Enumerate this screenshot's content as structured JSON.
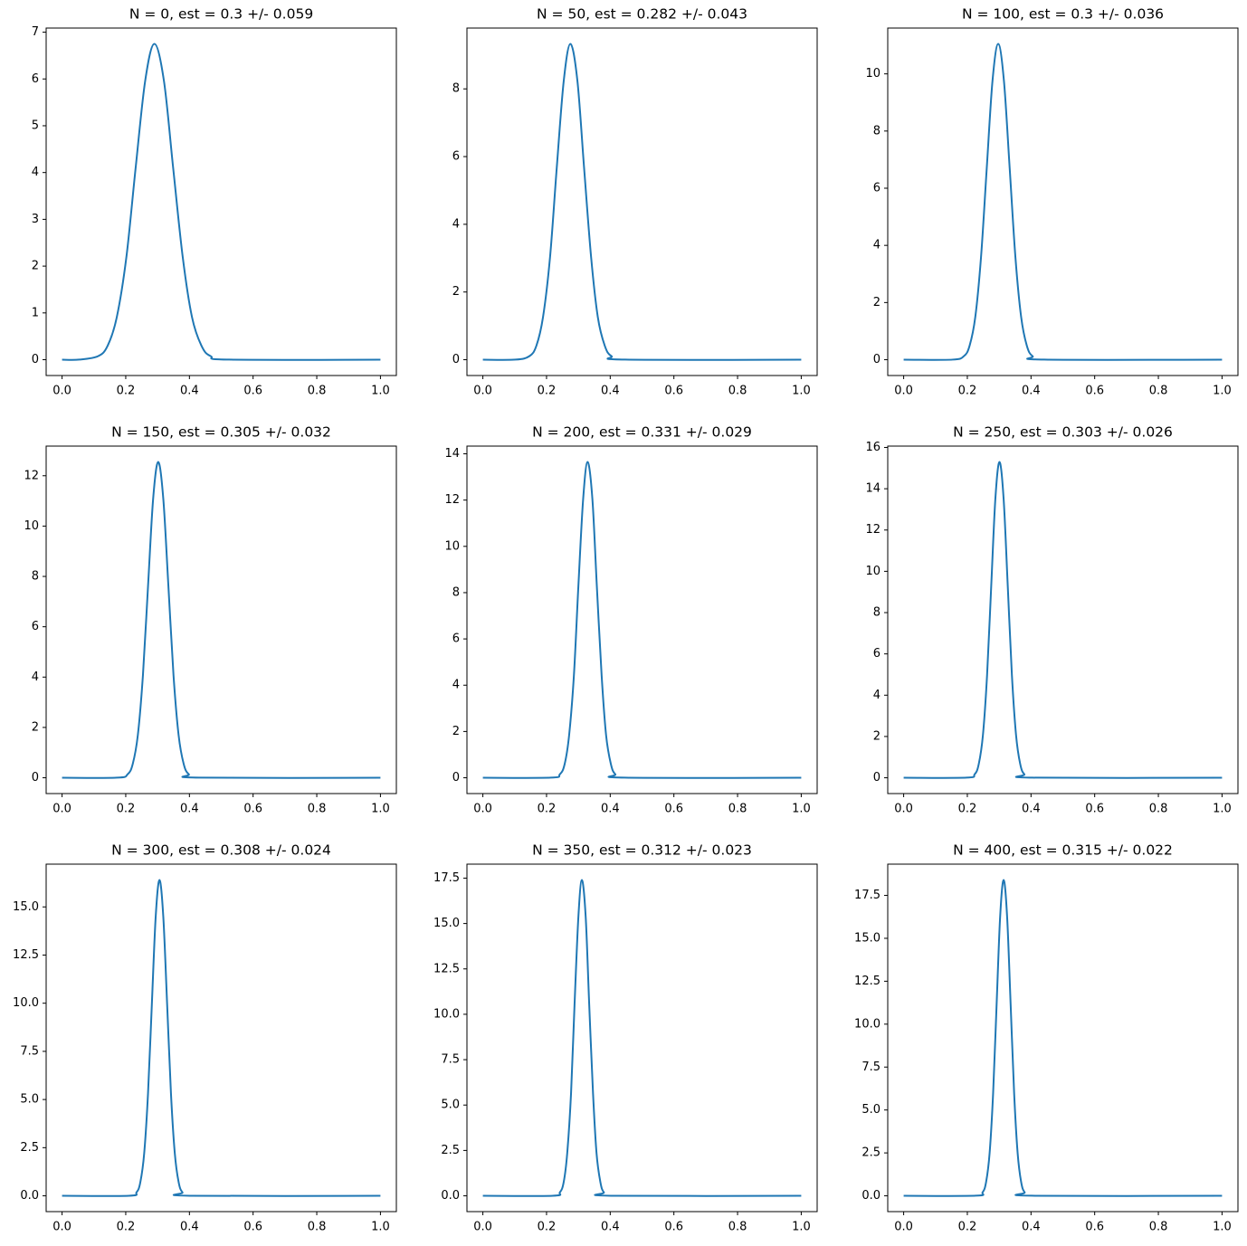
{
  "chart_data": [
    {
      "type": "line",
      "title": "N = 0, est = 0.3 +/- 0.059",
      "color": "#1f77b4",
      "x": [
        0,
        0.054,
        0.113,
        0.143,
        0.172,
        0.202,
        0.231,
        0.261,
        0.29,
        0.32,
        0.349,
        0.379,
        0.408,
        0.438,
        0.467,
        0.526,
        1
      ],
      "values": [
        0,
        0.002,
        0.075,
        0.296,
        0.913,
        2.192,
        4.094,
        5.957,
        6.75,
        5.957,
        4.094,
        2.192,
        0.913,
        0.296,
        0.075,
        0.002,
        0
      ],
      "xlim": [
        -0.05,
        1.05
      ],
      "xticks": [
        {
          "value": 0,
          "label": "0.0"
        },
        0.2,
        0.4,
        0.6,
        0.8,
        {
          "value": 1,
          "label": "1.0"
        }
      ],
      "ylim": [
        -0.338,
        7.088
      ],
      "yticks": [
        0,
        1,
        2,
        3,
        4,
        5,
        6,
        7
      ]
    },
    {
      "type": "line",
      "title": "N = 50, est = 0.282 +/- 0.043",
      "color": "#1f77b4",
      "x": [
        0,
        0.103,
        0.146,
        0.168,
        0.189,
        0.211,
        0.232,
        0.254,
        0.275,
        0.297,
        0.318,
        0.34,
        0.361,
        0.383,
        0.404,
        0.447,
        1
      ],
      "values": [
        0,
        0.003,
        0.104,
        0.41,
        1.262,
        3.029,
        5.659,
        8.234,
        9.33,
        8.234,
        5.659,
        3.029,
        1.262,
        0.41,
        0.104,
        0.003,
        0
      ],
      "xlim": [
        -0.05,
        1.05
      ],
      "xticks": [
        {
          "value": 0,
          "label": "0.0"
        },
        0.2,
        0.4,
        0.6,
        0.8,
        {
          "value": 1,
          "label": "1.0"
        }
      ],
      "ylim": [
        -0.467,
        9.797
      ],
      "yticks": [
        0,
        2,
        4,
        6,
        8
      ]
    },
    {
      "type": "line",
      "title": "N = 100, est = 0.3 +/- 0.036",
      "color": "#1f77b4",
      "x": [
        0,
        0.153,
        0.189,
        0.207,
        0.225,
        0.243,
        0.261,
        0.279,
        0.297,
        0.315,
        0.333,
        0.351,
        0.369,
        0.387,
        0.405,
        0.441,
        1
      ],
      "values": [
        0,
        0.003,
        0.123,
        0.485,
        1.495,
        3.588,
        6.702,
        9.752,
        11.05,
        9.752,
        6.702,
        3.588,
        1.495,
        0.485,
        0.123,
        0.003,
        0
      ],
      "xlim": [
        -0.05,
        1.05
      ],
      "xticks": [
        {
          "value": 0,
          "label": "0.0"
        },
        0.2,
        0.4,
        0.6,
        0.8,
        {
          "value": 1,
          "label": "1.0"
        }
      ],
      "ylim": [
        -0.553,
        11.603
      ],
      "yticks": [
        0,
        2,
        4,
        6,
        8,
        10
      ]
    },
    {
      "type": "line",
      "title": "N = 150, est = 0.305 +/- 0.032",
      "color": "#1f77b4",
      "x": [
        0,
        0.174,
        0.206,
        0.222,
        0.238,
        0.254,
        0.27,
        0.286,
        0.302,
        0.318,
        0.334,
        0.35,
        0.366,
        0.382,
        0.398,
        0.43,
        1
      ],
      "values": [
        0,
        0.004,
        0.139,
        0.551,
        1.698,
        4.075,
        7.612,
        11.075,
        12.55,
        11.075,
        7.612,
        4.075,
        1.698,
        0.551,
        0.139,
        0.004,
        0
      ],
      "xlim": [
        -0.05,
        1.05
      ],
      "xticks": [
        {
          "value": 0,
          "label": "0.0"
        },
        0.2,
        0.4,
        0.6,
        0.8,
        {
          "value": 1,
          "label": "1.0"
        }
      ],
      "ylim": [
        -0.628,
        13.178
      ],
      "yticks": [
        0,
        2,
        4,
        6,
        8,
        10,
        12
      ]
    },
    {
      "type": "line",
      "title": "N = 200, est = 0.331 +/- 0.029",
      "color": "#1f77b4",
      "x": [
        0,
        0.213,
        0.242,
        0.257,
        0.271,
        0.286,
        0.3,
        0.315,
        0.329,
        0.344,
        0.358,
        0.373,
        0.387,
        0.402,
        0.416,
        0.445,
        1
      ],
      "values": [
        0,
        0.004,
        0.152,
        0.599,
        1.847,
        4.432,
        8.279,
        12.046,
        13.65,
        12.046,
        8.279,
        4.432,
        1.847,
        0.599,
        0.152,
        0.004,
        0
      ],
      "xlim": [
        -0.05,
        1.05
      ],
      "xticks": [
        {
          "value": 0,
          "label": "0.0"
        },
        0.2,
        0.4,
        0.6,
        0.8,
        {
          "value": 1,
          "label": "1.0"
        }
      ],
      "ylim": [
        -0.683,
        14.333
      ],
      "yticks": [
        0,
        2,
        4,
        6,
        8,
        10,
        12,
        14
      ]
    },
    {
      "type": "line",
      "title": "N = 250, est = 0.303 +/- 0.026",
      "color": "#1f77b4",
      "x": [
        0,
        0.197,
        0.223,
        0.236,
        0.249,
        0.262,
        0.275,
        0.288,
        0.301,
        0.314,
        0.327,
        0.34,
        0.353,
        0.366,
        0.379,
        0.405,
        1
      ],
      "values": [
        0,
        0.005,
        0.17,
        0.672,
        2.07,
        4.968,
        9.279,
        13.502,
        15.3,
        13.502,
        9.279,
        4.968,
        2.07,
        0.672,
        0.17,
        0.005,
        0
      ],
      "xlim": [
        -0.05,
        1.05
      ],
      "xticks": [
        {
          "value": 0,
          "label": "0.0"
        },
        0.2,
        0.4,
        0.6,
        0.8,
        {
          "value": 1,
          "label": "1.0"
        }
      ],
      "ylim": [
        -0.765,
        16.065
      ],
      "yticks": [
        0,
        2,
        4,
        6,
        8,
        10,
        12,
        14,
        16
      ]
    },
    {
      "type": "line",
      "title": "N = 300, est = 0.308 +/- 0.024",
      "color": "#1f77b4",
      "x": [
        0,
        0.21,
        0.234,
        0.246,
        0.258,
        0.27,
        0.282,
        0.294,
        0.306,
        0.318,
        0.33,
        0.342,
        0.354,
        0.366,
        0.378,
        0.402,
        1
      ],
      "values": [
        0,
        0.005,
        0.182,
        0.72,
        2.219,
        5.325,
        9.947,
        14.473,
        16.4,
        14.473,
        9.947,
        5.325,
        2.219,
        0.72,
        0.182,
        0.005,
        0
      ],
      "xlim": [
        -0.05,
        1.05
      ],
      "xticks": [
        {
          "value": 0,
          "label": "0.0"
        },
        0.2,
        0.4,
        0.6,
        0.8,
        {
          "value": 1,
          "label": "1.0"
        }
      ],
      "ylim": [
        -0.82,
        17.22
      ],
      "yticks": [
        {
          "value": 0,
          "label": "0.0"
        },
        2.5,
        {
          "value": 5,
          "label": "5.0"
        },
        7.5,
        {
          "value": 10,
          "label": "10.0"
        },
        12.5,
        {
          "value": 15,
          "label": "15.0"
        }
      ]
    },
    {
      "type": "line",
      "title": "N = 350, est = 0.312 +/- 0.023",
      "color": "#1f77b4",
      "x": [
        0,
        0.219,
        0.242,
        0.254,
        0.265,
        0.277,
        0.288,
        0.3,
        0.311,
        0.323,
        0.334,
        0.346,
        0.357,
        0.369,
        0.38,
        0.403,
        1
      ],
      "values": [
        0,
        0.005,
        0.193,
        0.764,
        2.354,
        5.65,
        10.553,
        15.356,
        17.4,
        15.356,
        10.553,
        5.65,
        2.354,
        0.764,
        0.193,
        0.005,
        0
      ],
      "xlim": [
        -0.05,
        1.05
      ],
      "xticks": [
        {
          "value": 0,
          "label": "0.0"
        },
        0.2,
        0.4,
        0.6,
        0.8,
        {
          "value": 1,
          "label": "1.0"
        }
      ],
      "ylim": [
        -0.87,
        18.27
      ],
      "yticks": [
        {
          "value": 0,
          "label": "0.0"
        },
        2.5,
        {
          "value": 5,
          "label": "5.0"
        },
        7.5,
        {
          "value": 10,
          "label": "10.0"
        },
        12.5,
        {
          "value": 15,
          "label": "15.0"
        },
        17.5
      ]
    },
    {
      "type": "line",
      "title": "N = 400, est = 0.315 +/- 0.022",
      "color": "#1f77b4",
      "x": [
        0,
        0.226,
        0.248,
        0.259,
        0.27,
        0.281,
        0.292,
        0.303,
        0.314,
        0.325,
        0.336,
        0.347,
        0.358,
        0.369,
        0.38,
        0.402,
        1
      ],
      "values": [
        0,
        0.006,
        0.204,
        0.808,
        2.49,
        5.974,
        11.16,
        16.238,
        18.4,
        16.238,
        11.16,
        5.974,
        2.49,
        0.808,
        0.204,
        0.006,
        0
      ],
      "xlim": [
        -0.05,
        1.05
      ],
      "xticks": [
        {
          "value": 0,
          "label": "0.0"
        },
        0.2,
        0.4,
        0.6,
        0.8,
        {
          "value": 1,
          "label": "1.0"
        }
      ],
      "ylim": [
        -0.92,
        19.32
      ],
      "yticks": [
        {
          "value": 0,
          "label": "0.0"
        },
        2.5,
        {
          "value": 5,
          "label": "5.0"
        },
        7.5,
        {
          "value": 10,
          "label": "10.0"
        },
        12.5,
        {
          "value": 15,
          "label": "15.0"
        },
        17.5
      ]
    }
  ]
}
